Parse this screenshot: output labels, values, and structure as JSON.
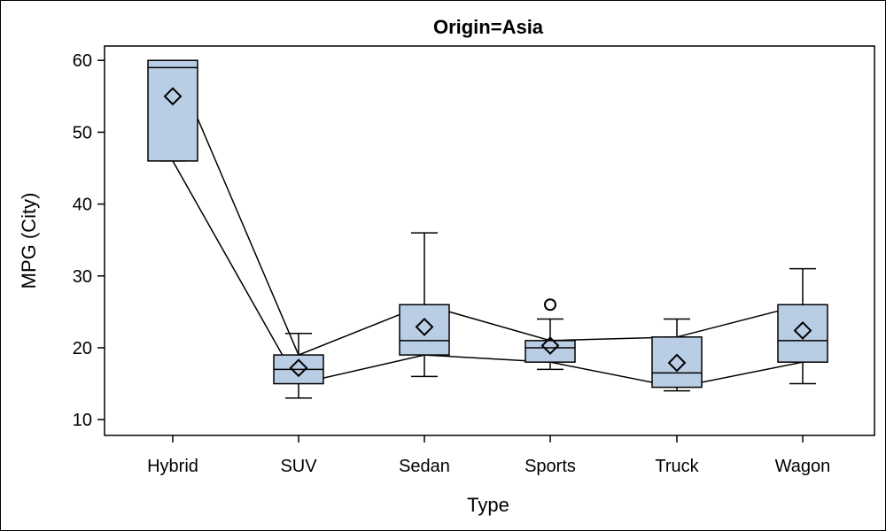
{
  "chart_data": {
    "type": "box",
    "title": "Origin=Asia",
    "xlabel": "Type",
    "ylabel": "MPG (City)",
    "categories": [
      "Hybrid",
      "SUV",
      "Sedan",
      "Sports",
      "Truck",
      "Wagon"
    ],
    "yticks": [
      10,
      20,
      30,
      40,
      50,
      60
    ],
    "ylim": [
      7.8,
      62
    ],
    "grid": false,
    "box_fill": "#b9cde5",
    "line_color": "#000000",
    "boxes": [
      {
        "category": "Hybrid",
        "q1": 46,
        "median": 59,
        "q3": 60,
        "whisker_low": 46,
        "whisker_high": 60,
        "mean": 55,
        "outliers": []
      },
      {
        "category": "SUV",
        "q1": 15,
        "median": 17,
        "q3": 19,
        "whisker_low": 13,
        "whisker_high": 22,
        "mean": 17.2,
        "outliers": []
      },
      {
        "category": "Sedan",
        "q1": 19,
        "median": 21,
        "q3": 26,
        "whisker_low": 16,
        "whisker_high": 36,
        "mean": 22.9,
        "outliers": []
      },
      {
        "category": "Sports",
        "q1": 18,
        "median": 20,
        "q3": 21,
        "whisker_low": 17,
        "whisker_high": 24,
        "mean": 20.3,
        "outliers": [
          26
        ]
      },
      {
        "category": "Truck",
        "q1": 14.5,
        "median": 16.5,
        "q3": 21.5,
        "whisker_low": 14,
        "whisker_high": 24,
        "mean": 17.9,
        "outliers": []
      },
      {
        "category": "Wagon",
        "q1": 18,
        "median": 21,
        "q3": 26,
        "whisker_low": 15,
        "whisker_high": 31,
        "mean": 22.4,
        "outliers": []
      }
    ],
    "connect_lines": [
      "q1",
      "q3"
    ]
  }
}
